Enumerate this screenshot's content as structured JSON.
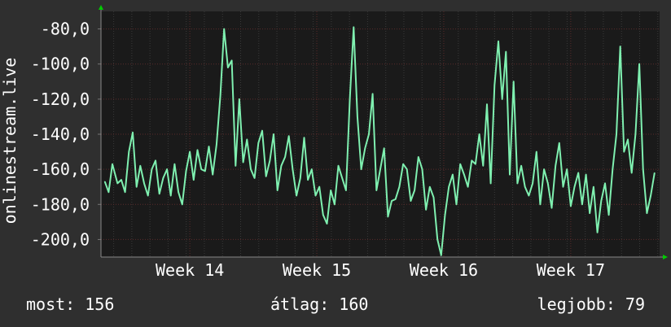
{
  "chart_data": {
    "type": "line",
    "ylabel": "onlinestream.live",
    "ylim": [
      -210,
      -70
    ],
    "yticks": [
      -80,
      -100,
      -120,
      -140,
      -160,
      -180,
      -200
    ],
    "ytick_labels": [
      "-80,0",
      "-100,0",
      "-120,0",
      "-140,0",
      "-160,0",
      "-180,0",
      "-200,0"
    ],
    "xlim": [
      13.3,
      17.7
    ],
    "xticks": [
      14,
      15,
      16,
      17
    ],
    "xtick_labels": [
      "Week 14",
      "Week 15",
      "Week 16",
      "Week 17"
    ],
    "grid": true,
    "colors": {
      "background": "#2f2f2f",
      "plot": "#1a1a1a",
      "line": "#7ff0b0",
      "grid": "#5a2a2a",
      "grid_minor": "#3a3a3a",
      "text": "#ffffff",
      "arrow": "#00cc00"
    },
    "series": [
      {
        "points": [
          [
            13.33,
            -167
          ],
          [
            13.36,
            -173
          ],
          [
            13.39,
            -157
          ],
          [
            13.43,
            -168
          ],
          [
            13.46,
            -166
          ],
          [
            13.49,
            -173
          ],
          [
            13.52,
            -150
          ],
          [
            13.55,
            -139
          ],
          [
            13.58,
            -170
          ],
          [
            13.61,
            -158
          ],
          [
            13.64,
            -168
          ],
          [
            13.67,
            -175
          ],
          [
            13.7,
            -160
          ],
          [
            13.73,
            -155
          ],
          [
            13.76,
            -174
          ],
          [
            13.79,
            -165
          ],
          [
            13.82,
            -160
          ],
          [
            13.85,
            -175
          ],
          [
            13.88,
            -157
          ],
          [
            13.91,
            -173
          ],
          [
            13.94,
            -180
          ],
          [
            13.97,
            -161
          ],
          [
            14.0,
            -150
          ],
          [
            14.03,
            -166
          ],
          [
            14.06,
            -149
          ],
          [
            14.09,
            -160
          ],
          [
            14.12,
            -161
          ],
          [
            14.15,
            -147
          ],
          [
            14.18,
            -163
          ],
          [
            14.21,
            -146
          ],
          [
            14.24,
            -118
          ],
          [
            14.27,
            -80
          ],
          [
            14.3,
            -102
          ],
          [
            14.33,
            -98
          ],
          [
            14.36,
            -158
          ],
          [
            14.39,
            -120
          ],
          [
            14.42,
            -156
          ],
          [
            14.45,
            -143
          ],
          [
            14.48,
            -160
          ],
          [
            14.51,
            -165
          ],
          [
            14.54,
            -145
          ],
          [
            14.57,
            -138
          ],
          [
            14.6,
            -164
          ],
          [
            14.63,
            -155
          ],
          [
            14.66,
            -140
          ],
          [
            14.69,
            -172
          ],
          [
            14.72,
            -158
          ],
          [
            14.75,
            -153
          ],
          [
            14.78,
            -141
          ],
          [
            14.81,
            -160
          ],
          [
            14.84,
            -175
          ],
          [
            14.87,
            -165
          ],
          [
            14.9,
            -142
          ],
          [
            14.93,
            -166
          ],
          [
            14.96,
            -160
          ],
          [
            14.99,
            -175
          ],
          [
            15.02,
            -170
          ],
          [
            15.05,
            -186
          ],
          [
            15.08,
            -191
          ],
          [
            15.11,
            -172
          ],
          [
            15.14,
            -180
          ],
          [
            15.17,
            -158
          ],
          [
            15.2,
            -165
          ],
          [
            15.23,
            -172
          ],
          [
            15.26,
            -120
          ],
          [
            15.29,
            -79
          ],
          [
            15.32,
            -130
          ],
          [
            15.35,
            -160
          ],
          [
            15.38,
            -148
          ],
          [
            15.41,
            -140
          ],
          [
            15.44,
            -117
          ],
          [
            15.47,
            -172
          ],
          [
            15.5,
            -160
          ],
          [
            15.53,
            -148
          ],
          [
            15.56,
            -187
          ],
          [
            15.59,
            -178
          ],
          [
            15.62,
            -177
          ],
          [
            15.65,
            -170
          ],
          [
            15.68,
            -157
          ],
          [
            15.71,
            -160
          ],
          [
            15.74,
            -178
          ],
          [
            15.77,
            -172
          ],
          [
            15.8,
            -153
          ],
          [
            15.83,
            -160
          ],
          [
            15.86,
            -183
          ],
          [
            15.89,
            -170
          ],
          [
            15.92,
            -176
          ],
          [
            15.95,
            -200
          ],
          [
            15.98,
            -209
          ],
          [
            16.01,
            -186
          ],
          [
            16.04,
            -170
          ],
          [
            16.07,
            -163
          ],
          [
            16.1,
            -180
          ],
          [
            16.13,
            -157
          ],
          [
            16.16,
            -163
          ],
          [
            16.19,
            -170
          ],
          [
            16.22,
            -155
          ],
          [
            16.25,
            -157
          ],
          [
            16.28,
            -140
          ],
          [
            16.31,
            -158
          ],
          [
            16.34,
            -123
          ],
          [
            16.37,
            -168
          ],
          [
            16.4,
            -112
          ],
          [
            16.43,
            -87
          ],
          [
            16.46,
            -120
          ],
          [
            16.49,
            -93
          ],
          [
            16.52,
            -163
          ],
          [
            16.55,
            -110
          ],
          [
            16.58,
            -168
          ],
          [
            16.61,
            -158
          ],
          [
            16.64,
            -170
          ],
          [
            16.67,
            -175
          ],
          [
            16.7,
            -168
          ],
          [
            16.73,
            -150
          ],
          [
            16.76,
            -180
          ],
          [
            16.79,
            -160
          ],
          [
            16.82,
            -168
          ],
          [
            16.85,
            -182
          ],
          [
            16.88,
            -158
          ],
          [
            16.91,
            -145
          ],
          [
            16.94,
            -170
          ],
          [
            16.97,
            -160
          ],
          [
            17.0,
            -181
          ],
          [
            17.03,
            -170
          ],
          [
            17.06,
            -162
          ],
          [
            17.09,
            -180
          ],
          [
            17.12,
            -163
          ],
          [
            17.15,
            -185
          ],
          [
            17.18,
            -170
          ],
          [
            17.21,
            -196
          ],
          [
            17.24,
            -178
          ],
          [
            17.27,
            -168
          ],
          [
            17.3,
            -186
          ],
          [
            17.33,
            -160
          ],
          [
            17.36,
            -140
          ],
          [
            17.39,
            -90
          ],
          [
            17.42,
            -150
          ],
          [
            17.45,
            -143
          ],
          [
            17.48,
            -162
          ],
          [
            17.51,
            -140
          ],
          [
            17.54,
            -100
          ],
          [
            17.57,
            -160
          ],
          [
            17.6,
            -185
          ],
          [
            17.63,
            -175
          ],
          [
            17.66,
            -162
          ]
        ]
      }
    ]
  },
  "stats": {
    "now": "most: 156",
    "avg": "átlag: 160",
    "max": "legjobb: 79"
  }
}
